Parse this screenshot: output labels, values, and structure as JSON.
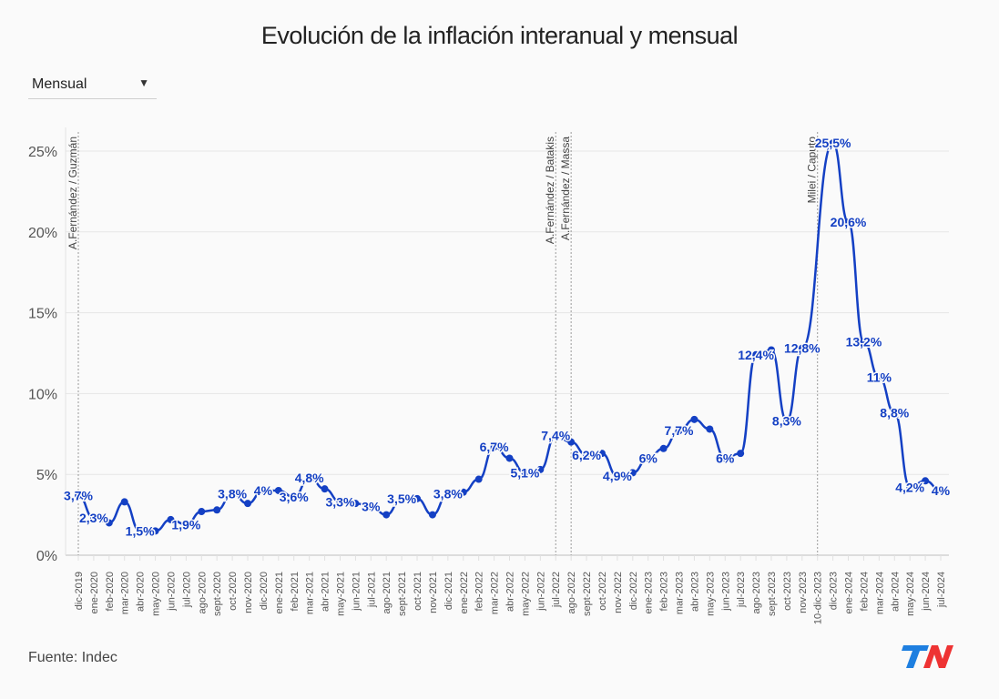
{
  "title": "Evolución de la inflación interanual y mensual",
  "dropdown": {
    "selected": "Mensual",
    "icon": "caret-down-icon"
  },
  "footer": {
    "source": "Fuente: Indec"
  },
  "logo": {
    "text": "TN",
    "colors": {
      "T": "#1e7fe0",
      "N": "#ee3333"
    }
  },
  "colors": {
    "line": "#1440c4",
    "grid": "#e6e6e6",
    "axis_text": "#555555",
    "annotation_text": "#444444"
  },
  "chart_data": {
    "type": "line",
    "title": "Evolución de la inflación interanual y mensual",
    "xlabel": "",
    "ylabel": "",
    "ylim": [
      0,
      25.5
    ],
    "yticks": [
      0,
      5,
      10,
      15,
      20,
      25
    ],
    "ytick_labels": [
      "0%",
      "5%",
      "10%",
      "15%",
      "20%",
      "25%"
    ],
    "grid": true,
    "categories": [
      "dic-2019",
      "ene-2020",
      "feb-2020",
      "mar-2020",
      "abr-2020",
      "may-2020",
      "jun-2020",
      "jul-2020",
      "ago-2020",
      "sept-2020",
      "oct-2020",
      "nov-2020",
      "dic-2020",
      "ene-2021",
      "feb-2021",
      "mar-2021",
      "abr-2021",
      "may-2021",
      "jun-2021",
      "jul-2021",
      "ago-2021",
      "sept-2021",
      "oct-2021",
      "nov-2021",
      "dic-2021",
      "ene-2022",
      "feb-2022",
      "mar-2022",
      "abr-2022",
      "may-2022",
      "jun-2022",
      "jul-2022",
      "ago-2022",
      "sept-2022",
      "oct-2022",
      "nov-2022",
      "dic-2022",
      "ene-2023",
      "feb-2023",
      "mar-2023",
      "abr-2023",
      "may-2023",
      "jun-2023",
      "jul-2023",
      "ago-2023",
      "sept-2023",
      "oct-2023",
      "nov-2023",
      "10-dic-2023",
      "dic-2023",
      "ene-2024",
      "feb-2024",
      "mar-2024",
      "abr-2024",
      "may-2024",
      "jun-2024",
      "jul-2024"
    ],
    "series": [
      {
        "name": "Mensual",
        "values": [
          3.7,
          2.3,
          2.0,
          3.3,
          1.5,
          1.5,
          2.2,
          1.9,
          2.7,
          2.8,
          3.8,
          3.2,
          4.0,
          4.0,
          3.6,
          4.8,
          4.1,
          3.3,
          3.2,
          3.0,
          2.5,
          3.5,
          3.5,
          2.5,
          3.8,
          3.9,
          4.7,
          6.7,
          6.0,
          5.1,
          5.3,
          7.4,
          7.0,
          6.2,
          6.3,
          4.9,
          5.1,
          6.0,
          6.6,
          7.7,
          8.4,
          7.8,
          6.0,
          6.3,
          12.4,
          12.7,
          8.3,
          12.8,
          null,
          25.5,
          20.6,
          13.2,
          11.0,
          8.8,
          4.2,
          4.6,
          4.0
        ]
      }
    ],
    "data_labels": [
      {
        "category": "dic-2019",
        "text": "3,7%"
      },
      {
        "category": "ene-2020",
        "text": "2,3%"
      },
      {
        "category": "abr-2020",
        "text": "1,5%"
      },
      {
        "category": "jul-2020",
        "text": "1,9%"
      },
      {
        "category": "oct-2020",
        "text": "3,8%"
      },
      {
        "category": "dic-2020",
        "text": "4%"
      },
      {
        "category": "feb-2021",
        "text": "3,6%"
      },
      {
        "category": "mar-2021",
        "text": "4,8%"
      },
      {
        "category": "may-2021",
        "text": "3,3%"
      },
      {
        "category": "jul-2021",
        "text": "3%"
      },
      {
        "category": "sept-2021",
        "text": "3,5%"
      },
      {
        "category": "dic-2021",
        "text": "3,8%"
      },
      {
        "category": "mar-2022",
        "text": "6,7%"
      },
      {
        "category": "may-2022",
        "text": "5,1%"
      },
      {
        "category": "jul-2022",
        "text": "7,4%"
      },
      {
        "category": "sept-2022",
        "text": "6,2%"
      },
      {
        "category": "nov-2022",
        "text": "4,9%"
      },
      {
        "category": "ene-2023",
        "text": "6%"
      },
      {
        "category": "mar-2023",
        "text": "7,7%"
      },
      {
        "category": "jun-2023",
        "text": "6%"
      },
      {
        "category": "ago-2023",
        "text": "12,4%"
      },
      {
        "category": "oct-2023",
        "text": "8,3%"
      },
      {
        "category": "nov-2023",
        "text": "12,8%"
      },
      {
        "category": "dic-2023",
        "text": "25,5%"
      },
      {
        "category": "ene-2024",
        "text": "20,6%"
      },
      {
        "category": "feb-2024",
        "text": "13,2%"
      },
      {
        "category": "mar-2024",
        "text": "11%"
      },
      {
        "category": "abr-2024",
        "text": "8,8%"
      },
      {
        "category": "may-2024",
        "text": "4,2%"
      },
      {
        "category": "jul-2024",
        "text": "4%"
      }
    ],
    "annotations": [
      {
        "category": "dic-2019",
        "text": "A.Fernández / Guzmán"
      },
      {
        "category": "jul-2022",
        "text": "A.Fernández / Batakis"
      },
      {
        "category": "ago-2022",
        "text": "A.Fernández / Massa"
      },
      {
        "category": "10-dic-2023",
        "text": "Milei / Caputo"
      }
    ],
    "legend": "none"
  }
}
